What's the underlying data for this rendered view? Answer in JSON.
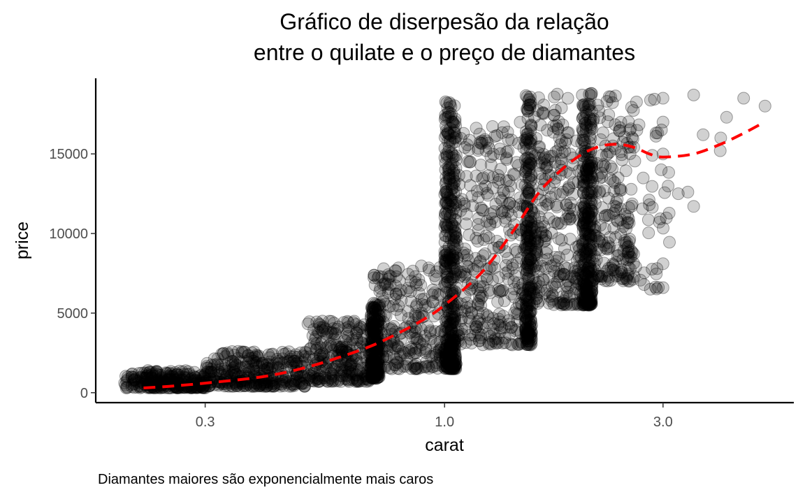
{
  "chart_data": {
    "type": "scatter",
    "title": [
      "Gráfico de diserpesão da relação",
      "entre o quilate e o preço de diamantes"
    ],
    "xlabel": "carat",
    "ylabel": "price",
    "caption": "Diamantes maiores são exponencialmente mais caros",
    "x_scale": "log10",
    "xlim": [
      0.2,
      5.01
    ],
    "ylim": [
      0,
      19500
    ],
    "x_ticks": [
      0.3,
      1.0,
      3.0
    ],
    "x_tick_labels": [
      "0.3",
      "1.0",
      "3.0"
    ],
    "y_ticks": [
      0,
      5000,
      10000,
      15000
    ],
    "y_tick_labels": [
      "0",
      "5000",
      "10000",
      "15000"
    ],
    "grid": false,
    "legend": "none",
    "colors": {
      "points": "#000000",
      "trend": "#ff0000"
    },
    "point_alpha": 0.2,
    "scatter_clusters": [
      {
        "x": [
          0.2,
          0.3
        ],
        "y": [
          300,
          1400
        ],
        "n": 260
      },
      {
        "x": [
          0.3,
          0.5
        ],
        "y": [
          400,
          2600
        ],
        "n": 320
      },
      {
        "x": [
          0.5,
          0.7
        ],
        "y": [
          700,
          4500
        ],
        "n": 260
      },
      {
        "x": [
          0.69,
          0.72
        ],
        "y": [
          900,
          5600
        ],
        "n": 220
      },
      {
        "x": [
          0.7,
          1.0
        ],
        "y": [
          1500,
          8000
        ],
        "n": 240
      },
      {
        "x": [
          1.0,
          1.06
        ],
        "y": [
          1500,
          18500
        ],
        "n": 420
      },
      {
        "x": [
          1.06,
          1.5
        ],
        "y": [
          3000,
          17000
        ],
        "n": 320
      },
      {
        "x": [
          1.5,
          1.55
        ],
        "y": [
          3000,
          18700
        ],
        "n": 260
      },
      {
        "x": [
          1.55,
          2.0
        ],
        "y": [
          5500,
          18800
        ],
        "n": 260
      },
      {
        "x": [
          2.0,
          2.1
        ],
        "y": [
          5500,
          18900
        ],
        "n": 320
      },
      {
        "x": [
          2.1,
          2.6
        ],
        "y": [
          7000,
          18800
        ],
        "n": 200
      },
      {
        "x": [
          2.6,
          3.1
        ],
        "y": [
          6500,
          18500
        ],
        "n": 40
      }
    ],
    "scatter_points": [
      {
        "x": 3.0,
        "y": 18500
      },
      {
        "x": 3.0,
        "y": 17000
      },
      {
        "x": 3.0,
        "y": 15000
      },
      {
        "x": 3.0,
        "y": 8100
      },
      {
        "x": 3.0,
        "y": 6600
      },
      {
        "x": 3.4,
        "y": 12600
      },
      {
        "x": 3.5,
        "y": 11700
      },
      {
        "x": 3.67,
        "y": 16200
      },
      {
        "x": 4.0,
        "y": 15200
      },
      {
        "x": 4.01,
        "y": 16000
      },
      {
        "x": 4.13,
        "y": 17300
      },
      {
        "x": 4.5,
        "y": 18500
      },
      {
        "x": 5.01,
        "y": 18000
      },
      {
        "x": 3.5,
        "y": 18700
      },
      {
        "x": 3.24,
        "y": 12500
      }
    ],
    "trend_line": {
      "style": "dashed",
      "x": [
        0.22,
        0.25,
        0.3,
        0.4,
        0.5,
        0.6,
        0.7,
        0.8,
        0.9,
        1.0,
        1.2,
        1.4,
        1.6,
        1.8,
        2.0,
        2.2,
        2.4,
        2.6,
        2.8,
        3.0,
        3.5,
        4.0,
        4.5,
        5.0
      ],
      "y": [
        300,
        400,
        600,
        1000,
        1600,
        2300,
        3000,
        3800,
        4600,
        5500,
        7500,
        10000,
        12500,
        14000,
        15000,
        15500,
        15600,
        15400,
        15000,
        14800,
        15000,
        15600,
        16300,
        17000
      ]
    }
  }
}
